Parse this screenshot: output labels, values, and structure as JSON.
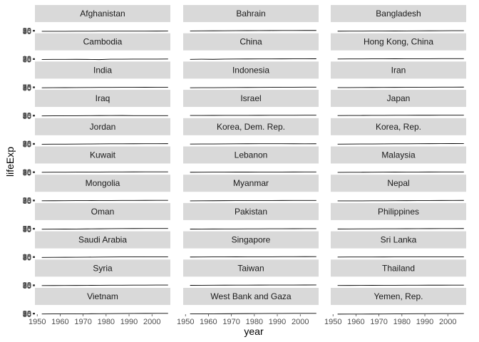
{
  "chart_data": {
    "type": "line",
    "facet": "wrap",
    "ncol": 3,
    "xlabel": "year",
    "ylabel": "lifeExp",
    "xlim": [
      1949,
      2008
    ],
    "ylim": [
      28,
      520
    ],
    "x_ticks": [
      1950,
      1960,
      1970,
      1980,
      1990,
      2000
    ],
    "y_ticks": [
      30,
      45,
      60,
      75,
      90
    ],
    "y_tick_labels": [
      "30",
      "45",
      "60",
      "75",
      "90"
    ],
    "grid": false,
    "line_color": "#000000",
    "strip_color": "#d9d9d9",
    "x": [
      1952,
      1957,
      1962,
      1967,
      1972,
      1977,
      1982,
      1987,
      1992,
      1997,
      2002,
      2007
    ],
    "panels": [
      {
        "name": "Afghanistan",
        "values": [
          28.8,
          30.3,
          32.0,
          34.0,
          36.1,
          38.4,
          39.9,
          40.8,
          41.7,
          41.8,
          42.1,
          43.8
        ]
      },
      {
        "name": "Bahrain",
        "values": [
          50.9,
          53.8,
          56.9,
          59.9,
          63.3,
          65.6,
          69.1,
          70.8,
          72.6,
          73.9,
          74.8,
          75.6
        ]
      },
      {
        "name": "Bangladesh",
        "values": [
          37.5,
          39.3,
          41.2,
          43.5,
          45.3,
          46.9,
          50.0,
          52.8,
          56.0,
          59.4,
          62.0,
          64.1
        ]
      },
      {
        "name": "Cambodia",
        "values": [
          39.4,
          41.4,
          43.4,
          45.4,
          40.3,
          31.2,
          51.0,
          53.9,
          55.8,
          56.5,
          56.8,
          59.7
        ]
      },
      {
        "name": "China",
        "values": [
          44.0,
          50.5,
          44.5,
          58.4,
          63.1,
          64.0,
          65.5,
          67.3,
          68.7,
          70.4,
          72.0,
          73.0
        ]
      },
      {
        "name": "Hong Kong, China",
        "values": [
          61.0,
          64.8,
          67.7,
          70.0,
          72.0,
          73.6,
          75.5,
          76.2,
          77.6,
          80.0,
          81.5,
          82.2
        ]
      },
      {
        "name": "India",
        "values": [
          37.4,
          40.2,
          43.6,
          47.2,
          50.7,
          54.2,
          56.6,
          58.6,
          60.2,
          61.8,
          62.9,
          64.7
        ]
      },
      {
        "name": "Indonesia",
        "values": [
          37.5,
          39.9,
          42.5,
          46.0,
          49.2,
          52.7,
          56.2,
          60.1,
          62.7,
          66.0,
          68.6,
          70.7
        ]
      },
      {
        "name": "Iran",
        "values": [
          44.9,
          47.2,
          49.3,
          52.5,
          55.2,
          57.7,
          59.6,
          63.0,
          65.7,
          68.0,
          69.5,
          71.0
        ]
      },
      {
        "name": "Iraq",
        "values": [
          45.3,
          48.4,
          51.5,
          54.5,
          56.9,
          60.4,
          62.0,
          65.0,
          59.5,
          58.8,
          57.0,
          59.5
        ]
      },
      {
        "name": "Israel",
        "values": [
          65.4,
          67.8,
          69.4,
          70.8,
          71.6,
          73.1,
          74.5,
          75.6,
          76.9,
          78.3,
          79.7,
          80.7
        ]
      },
      {
        "name": "Japan",
        "values": [
          63.0,
          65.5,
          68.7,
          71.4,
          73.4,
          75.4,
          77.1,
          78.7,
          79.4,
          80.7,
          82.0,
          82.6
        ]
      },
      {
        "name": "Jordan",
        "values": [
          43.2,
          45.7,
          48.1,
          51.6,
          56.5,
          61.1,
          63.7,
          65.9,
          68.0,
          69.8,
          71.3,
          72.5
        ]
      },
      {
        "name": "Korea, Dem. Rep.",
        "values": [
          50.1,
          54.1,
          56.7,
          59.9,
          64.0,
          67.2,
          69.1,
          70.6,
          70.0,
          67.7,
          66.7,
          67.3
        ]
      },
      {
        "name": "Korea, Rep.",
        "values": [
          47.5,
          52.7,
          55.3,
          57.7,
          62.6,
          64.8,
          67.1,
          69.8,
          72.2,
          74.6,
          77.0,
          78.6
        ]
      },
      {
        "name": "Kuwait",
        "values": [
          55.6,
          58.0,
          60.5,
          64.6,
          67.7,
          69.3,
          71.3,
          74.2,
          75.2,
          76.2,
          76.9,
          77.6
        ]
      },
      {
        "name": "Lebanon",
        "values": [
          55.9,
          59.5,
          62.1,
          63.9,
          65.4,
          66.1,
          66.9,
          67.9,
          69.3,
          70.3,
          71.0,
          72.0
        ]
      },
      {
        "name": "Malaysia",
        "values": [
          48.5,
          52.1,
          55.7,
          59.4,
          63.0,
          65.3,
          68.0,
          69.5,
          70.7,
          71.9,
          73.0,
          74.2
        ]
      },
      {
        "name": "Mongolia",
        "values": [
          42.2,
          45.2,
          48.3,
          51.3,
          53.8,
          55.5,
          57.5,
          60.2,
          61.3,
          63.6,
          65.0,
          66.8
        ]
      },
      {
        "name": "Myanmar",
        "values": [
          36.3,
          41.9,
          45.1,
          49.4,
          53.1,
          56.1,
          58.1,
          58.3,
          59.3,
          60.3,
          59.9,
          62.1
        ]
      },
      {
        "name": "Nepal",
        "values": [
          36.2,
          37.7,
          39.4,
          41.2,
          43.9,
          46.7,
          49.6,
          52.5,
          55.7,
          59.4,
          61.3,
          63.8
        ]
      },
      {
        "name": "Oman",
        "values": [
          37.6,
          40.1,
          43.2,
          46.9,
          52.1,
          57.4,
          62.7,
          67.7,
          71.2,
          72.5,
          74.2,
          75.6
        ]
      },
      {
        "name": "Pakistan",
        "values": [
          43.4,
          45.6,
          47.7,
          49.8,
          51.9,
          54.0,
          56.2,
          58.2,
          60.8,
          61.8,
          63.6,
          65.5
        ]
      },
      {
        "name": "Philippines",
        "values": [
          47.8,
          51.3,
          54.8,
          56.4,
          58.1,
          60.1,
          62.1,
          64.2,
          66.5,
          68.6,
          70.3,
          71.7
        ]
      },
      {
        "name": "Saudi Arabia",
        "values": [
          39.9,
          42.9,
          45.9,
          49.9,
          53.9,
          58.7,
          63.0,
          66.3,
          68.8,
          70.5,
          71.6,
          72.8
        ]
      },
      {
        "name": "Singapore",
        "values": [
          60.4,
          63.2,
          65.8,
          67.9,
          69.5,
          70.8,
          71.8,
          73.6,
          75.8,
          77.2,
          78.8,
          80.0
        ]
      },
      {
        "name": "Sri Lanka",
        "values": [
          57.6,
          61.5,
          62.2,
          64.3,
          65.0,
          65.9,
          68.8,
          69.0,
          70.4,
          70.5,
          70.8,
          72.4
        ]
      },
      {
        "name": "Syria",
        "values": [
          45.9,
          48.3,
          50.3,
          53.7,
          57.3,
          61.2,
          64.6,
          67.0,
          69.2,
          71.5,
          73.1,
          74.1
        ]
      },
      {
        "name": "Taiwan",
        "values": [
          58.5,
          62.4,
          65.2,
          67.5,
          69.4,
          70.6,
          72.2,
          73.4,
          74.3,
          75.3,
          76.9,
          78.4
        ]
      },
      {
        "name": "Thailand",
        "values": [
          50.8,
          53.6,
          56.1,
          58.3,
          60.4,
          62.5,
          64.6,
          66.1,
          67.3,
          67.5,
          68.6,
          70.6
        ]
      },
      {
        "name": "Vietnam",
        "values": [
          40.4,
          42.9,
          45.4,
          47.8,
          50.3,
          55.8,
          58.8,
          62.8,
          67.7,
          70.7,
          73.0,
          74.2
        ]
      },
      {
        "name": "West Bank and Gaza",
        "values": [
          43.2,
          45.7,
          48.1,
          51.6,
          56.5,
          60.8,
          64.4,
          67.0,
          69.7,
          71.1,
          72.4,
          73.4
        ]
      },
      {
        "name": "Yemen, Rep.",
        "values": [
          32.5,
          33.97,
          35.18,
          36.98,
          39.85,
          44.18,
          49.11,
          52.92,
          55.6,
          58.02,
          60.31,
          62.7
        ]
      }
    ]
  }
}
